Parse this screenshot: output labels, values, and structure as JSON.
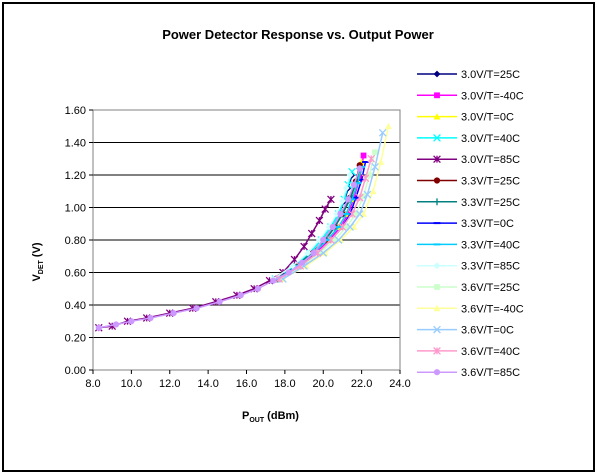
{
  "chart_data": {
    "type": "line",
    "title": "Power Detector Response vs. Output Power",
    "xlabel": "P",
    "xlabel_sub": "OUT",
    "xlabel_unit": " (dBm)",
    "ylabel": "V",
    "ylabel_sub": "DET",
    "ylabel_unit": " (V)",
    "xlim": [
      8.0,
      24.0
    ],
    "ylim": [
      0.0,
      1.6
    ],
    "x_ticks": [
      "8.0",
      "10.0",
      "12.0",
      "14.0",
      "16.0",
      "18.0",
      "20.0",
      "22.0",
      "24.0"
    ],
    "y_ticks": [
      "0.00",
      "0.20",
      "0.40",
      "0.60",
      "0.80",
      "1.00",
      "1.20",
      "1.40",
      "1.60"
    ],
    "grid": "horizontal",
    "legend_position": "right",
    "series": [
      {
        "name": "3.0V/T=25C",
        "color": "#000080",
        "marker": "diamond",
        "x": [
          17.5,
          18.5,
          19.3,
          19.9,
          20.4,
          20.8,
          21.1,
          21.3,
          21.5
        ],
        "y": [
          0.56,
          0.64,
          0.72,
          0.8,
          0.88,
          0.96,
          1.04,
          1.12,
          1.2
        ]
      },
      {
        "name": "3.0V/T=-40C",
        "color": "#ff00ff",
        "marker": "square",
        "x": [
          17.6,
          18.7,
          19.6,
          20.3,
          20.9,
          21.3,
          21.6,
          21.9,
          22.1
        ],
        "y": [
          0.56,
          0.64,
          0.72,
          0.8,
          0.88,
          0.96,
          1.06,
          1.18,
          1.32
        ]
      },
      {
        "name": "3.0V/T=0C",
        "color": "#ffff00",
        "marker": "triangle",
        "x": [
          17.6,
          18.7,
          19.5,
          20.2,
          20.8,
          21.2,
          21.5,
          21.8,
          22.0
        ],
        "y": [
          0.56,
          0.64,
          0.72,
          0.8,
          0.88,
          0.96,
          1.05,
          1.16,
          1.28
        ]
      },
      {
        "name": "3.0V/T=40C",
        "color": "#00ffff",
        "marker": "x",
        "x": [
          17.5,
          18.5,
          19.3,
          19.9,
          20.4,
          20.8,
          21.1,
          21.3,
          21.5
        ],
        "y": [
          0.56,
          0.64,
          0.72,
          0.8,
          0.88,
          0.96,
          1.05,
          1.14,
          1.22
        ]
      },
      {
        "name": "3.0V/T=85C",
        "color": "#800080",
        "marker": "star",
        "x": [
          8.3,
          9.0,
          9.8,
          10.8,
          12.0,
          13.2,
          14.4,
          15.5,
          16.4,
          17.2,
          17.9,
          18.5,
          19.0,
          19.4,
          19.8,
          20.1,
          20.4
        ],
        "y": [
          0.26,
          0.27,
          0.3,
          0.32,
          0.35,
          0.38,
          0.42,
          0.46,
          0.5,
          0.55,
          0.6,
          0.68,
          0.76,
          0.84,
          0.92,
          0.99,
          1.05
        ]
      },
      {
        "name": "3.3V/T=25C",
        "color": "#800000",
        "marker": "circle",
        "x": [
          17.6,
          18.6,
          19.4,
          20.1,
          20.6,
          21.0,
          21.4,
          21.7,
          21.9
        ],
        "y": [
          0.56,
          0.64,
          0.72,
          0.8,
          0.88,
          0.96,
          1.06,
          1.16,
          1.26
        ]
      },
      {
        "name": "3.3V/T=25C",
        "color": "#008080",
        "marker": "plus",
        "x": [
          17.6,
          18.6,
          19.4,
          20.1,
          20.6,
          21.0,
          21.4,
          21.7,
          21.9
        ],
        "y": [
          0.56,
          0.64,
          0.72,
          0.8,
          0.88,
          0.96,
          1.05,
          1.15,
          1.24
        ]
      },
      {
        "name": "3.3V/T=0C",
        "color": "#0000ff",
        "marker": "dash",
        "x": [
          17.7,
          18.8,
          19.7,
          20.4,
          21.0,
          21.4,
          21.7,
          22.0,
          22.2
        ],
        "y": [
          0.56,
          0.64,
          0.72,
          0.8,
          0.88,
          0.96,
          1.06,
          1.17,
          1.28
        ]
      },
      {
        "name": "3.3V/T=40C",
        "color": "#00ccff",
        "marker": "dash",
        "x": [
          17.6,
          18.7,
          19.5,
          20.2,
          20.8,
          21.2,
          21.5,
          21.8,
          22.0
        ],
        "y": [
          0.56,
          0.64,
          0.72,
          0.8,
          0.88,
          0.96,
          1.05,
          1.15,
          1.25
        ]
      },
      {
        "name": "3.3V/T=85C",
        "color": "#ccffff",
        "marker": "diamond",
        "x": [
          17.4,
          18.4,
          19.2,
          19.8,
          20.3,
          20.7,
          21.0,
          21.2,
          21.4
        ],
        "y": [
          0.56,
          0.64,
          0.72,
          0.8,
          0.88,
          0.96,
          1.04,
          1.12,
          1.2
        ]
      },
      {
        "name": "3.6V/T=25C",
        "color": "#ccffcc",
        "marker": "square",
        "x": [
          17.8,
          18.9,
          19.8,
          20.6,
          21.2,
          21.7,
          22.1,
          22.4,
          22.7
        ],
        "y": [
          0.56,
          0.64,
          0.72,
          0.8,
          0.88,
          0.96,
          1.07,
          1.2,
          1.34
        ]
      },
      {
        "name": "3.6V/T=-40C",
        "color": "#ffff99",
        "marker": "triangle",
        "x": [
          17.9,
          19.1,
          20.1,
          20.9,
          21.6,
          22.1,
          22.6,
          23.0,
          23.4
        ],
        "y": [
          0.56,
          0.64,
          0.72,
          0.8,
          0.88,
          0.96,
          1.1,
          1.28,
          1.5
        ]
      },
      {
        "name": "3.6V/T=0C",
        "color": "#99ccff",
        "marker": "x",
        "x": [
          17.9,
          19.0,
          20.0,
          20.8,
          21.4,
          21.9,
          22.3,
          22.7,
          23.1
        ],
        "y": [
          0.56,
          0.64,
          0.72,
          0.8,
          0.88,
          0.96,
          1.08,
          1.25,
          1.46
        ]
      },
      {
        "name": "3.6V/T=40C",
        "color": "#ff99cc",
        "marker": "star",
        "x": [
          17.7,
          18.8,
          19.7,
          20.4,
          21.0,
          21.5,
          21.9,
          22.2,
          22.5
        ],
        "y": [
          0.56,
          0.64,
          0.72,
          0.8,
          0.88,
          0.96,
          1.06,
          1.18,
          1.3
        ]
      },
      {
        "name": "3.6V/T=85C",
        "color": "#cc99ff",
        "marker": "circle",
        "x": [
          8.3,
          9.2,
          10.0,
          11.0,
          12.2,
          13.4,
          14.6,
          15.7,
          16.6,
          17.4,
          18.2,
          18.9,
          19.5,
          20.0,
          20.5,
          20.9,
          21.3,
          21.6,
          21.9
        ],
        "y": [
          0.26,
          0.28,
          0.3,
          0.32,
          0.35,
          0.38,
          0.42,
          0.46,
          0.5,
          0.55,
          0.6,
          0.66,
          0.72,
          0.8,
          0.88,
          0.96,
          1.05,
          1.14,
          1.24
        ]
      }
    ]
  }
}
